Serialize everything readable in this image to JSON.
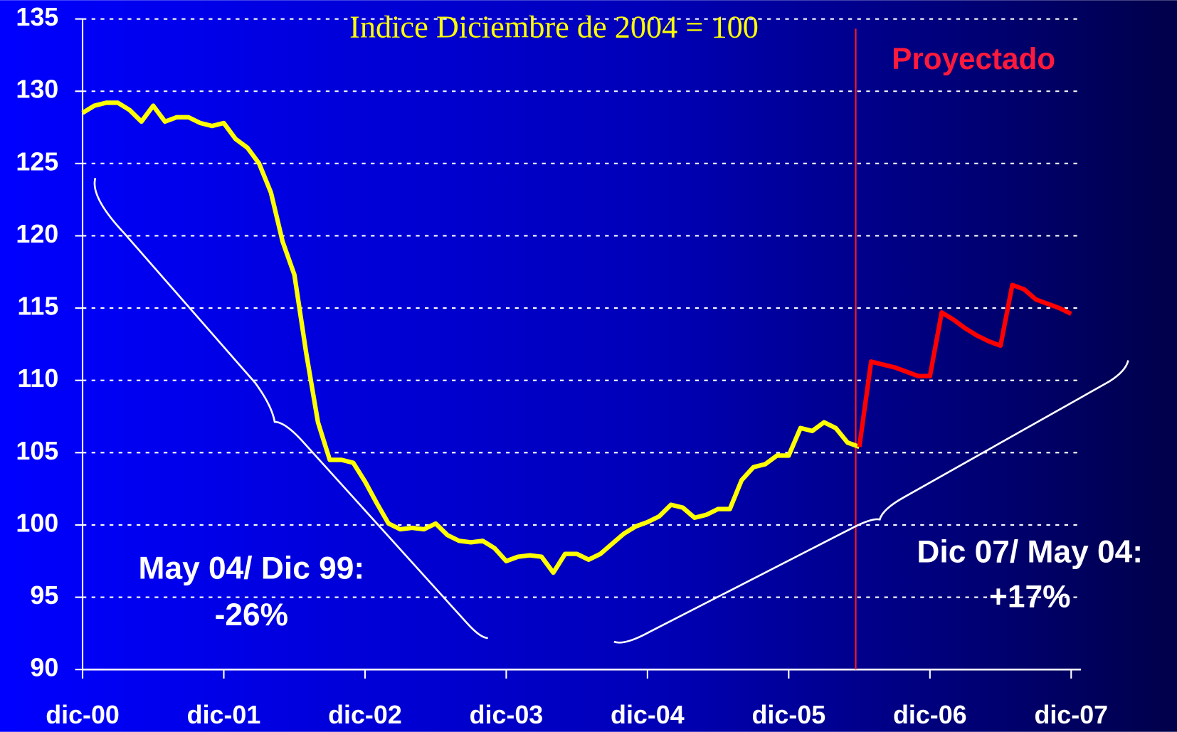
{
  "chart_data": {
    "type": "line",
    "title": "Indice Diciembre de 2004 = 100",
    "annotations": [
      {
        "lines": [
          "Proyectado"
        ]
      },
      {
        "lines": [
          "May 04/ Dic 99:",
          "-26%"
        ]
      },
      {
        "lines": [
          "Dic 07/ May 04:",
          "+17%"
        ]
      }
    ],
    "categories": [
      "dic-00",
      null,
      null,
      null,
      null,
      null,
      null,
      null,
      null,
      null,
      null,
      null,
      "dic-01",
      null,
      null,
      null,
      null,
      null,
      null,
      null,
      null,
      null,
      null,
      null,
      "dic-02",
      null,
      null,
      null,
      null,
      null,
      null,
      null,
      null,
      null,
      null,
      null,
      "dic-03",
      null,
      null,
      null,
      null,
      null,
      null,
      null,
      null,
      null,
      null,
      null,
      "dic-04",
      null,
      null,
      null,
      null,
      null,
      null,
      null,
      null,
      null,
      null,
      null,
      "dic-05",
      null,
      null,
      null,
      null,
      null,
      null,
      null,
      null,
      null,
      null,
      null,
      "dic-06",
      null,
      null,
      null,
      null,
      null,
      null,
      null,
      null,
      null,
      null,
      null,
      "dic-07"
    ],
    "series": [
      {
        "color": "#ffff00",
        "values": [
          128.5,
          129.0,
          129.2,
          129.2,
          128.7,
          127.9,
          129.0,
          127.9,
          128.2,
          128.2,
          127.8,
          127.6,
          127.8,
          126.7,
          126.1,
          125.0,
          123.0,
          119.6,
          117.3,
          111.9,
          107.1,
          104.5,
          104.5,
          104.3,
          103.0,
          101.5,
          100.1,
          99.7,
          99.8,
          99.7,
          100.1,
          99.3,
          98.9,
          98.8,
          98.9,
          98.4,
          97.5,
          97.8,
          97.9,
          97.8,
          96.7,
          98.0,
          98.0,
          97.6,
          98.0,
          98.7,
          99.4,
          99.9,
          100.2,
          100.6,
          101.4,
          101.2,
          100.5,
          100.7,
          101.1,
          101.1,
          103.1,
          104.0,
          104.2,
          104.8,
          104.8,
          106.7,
          106.5,
          107.1,
          106.7,
          105.7,
          105.4,
          null,
          null,
          null,
          null,
          null,
          null,
          null,
          null,
          null,
          null,
          null,
          null,
          null,
          null,
          null,
          null,
          null,
          null
        ]
      },
      {
        "color": "#ff0000",
        "values": [
          null,
          null,
          null,
          null,
          null,
          null,
          null,
          null,
          null,
          null,
          null,
          null,
          null,
          null,
          null,
          null,
          null,
          null,
          null,
          null,
          null,
          null,
          null,
          null,
          null,
          null,
          null,
          null,
          null,
          null,
          null,
          null,
          null,
          null,
          null,
          null,
          null,
          null,
          null,
          null,
          null,
          null,
          null,
          null,
          null,
          null,
          null,
          null,
          null,
          null,
          null,
          null,
          null,
          null,
          null,
          null,
          null,
          null,
          null,
          null,
          null,
          null,
          null,
          null,
          null,
          null,
          105.4,
          111.3,
          111.1,
          110.9,
          110.6,
          110.3,
          110.3,
          114.7,
          114.2,
          113.6,
          113.1,
          112.7,
          112.4,
          116.6,
          116.3,
          115.6,
          115.3,
          115.0,
          114.6
        ]
      }
    ],
    "ylim": [
      90,
      135
    ],
    "yticks": [
      90,
      95,
      100,
      105,
      110,
      115,
      120,
      125,
      130,
      135
    ],
    "grid": true
  }
}
